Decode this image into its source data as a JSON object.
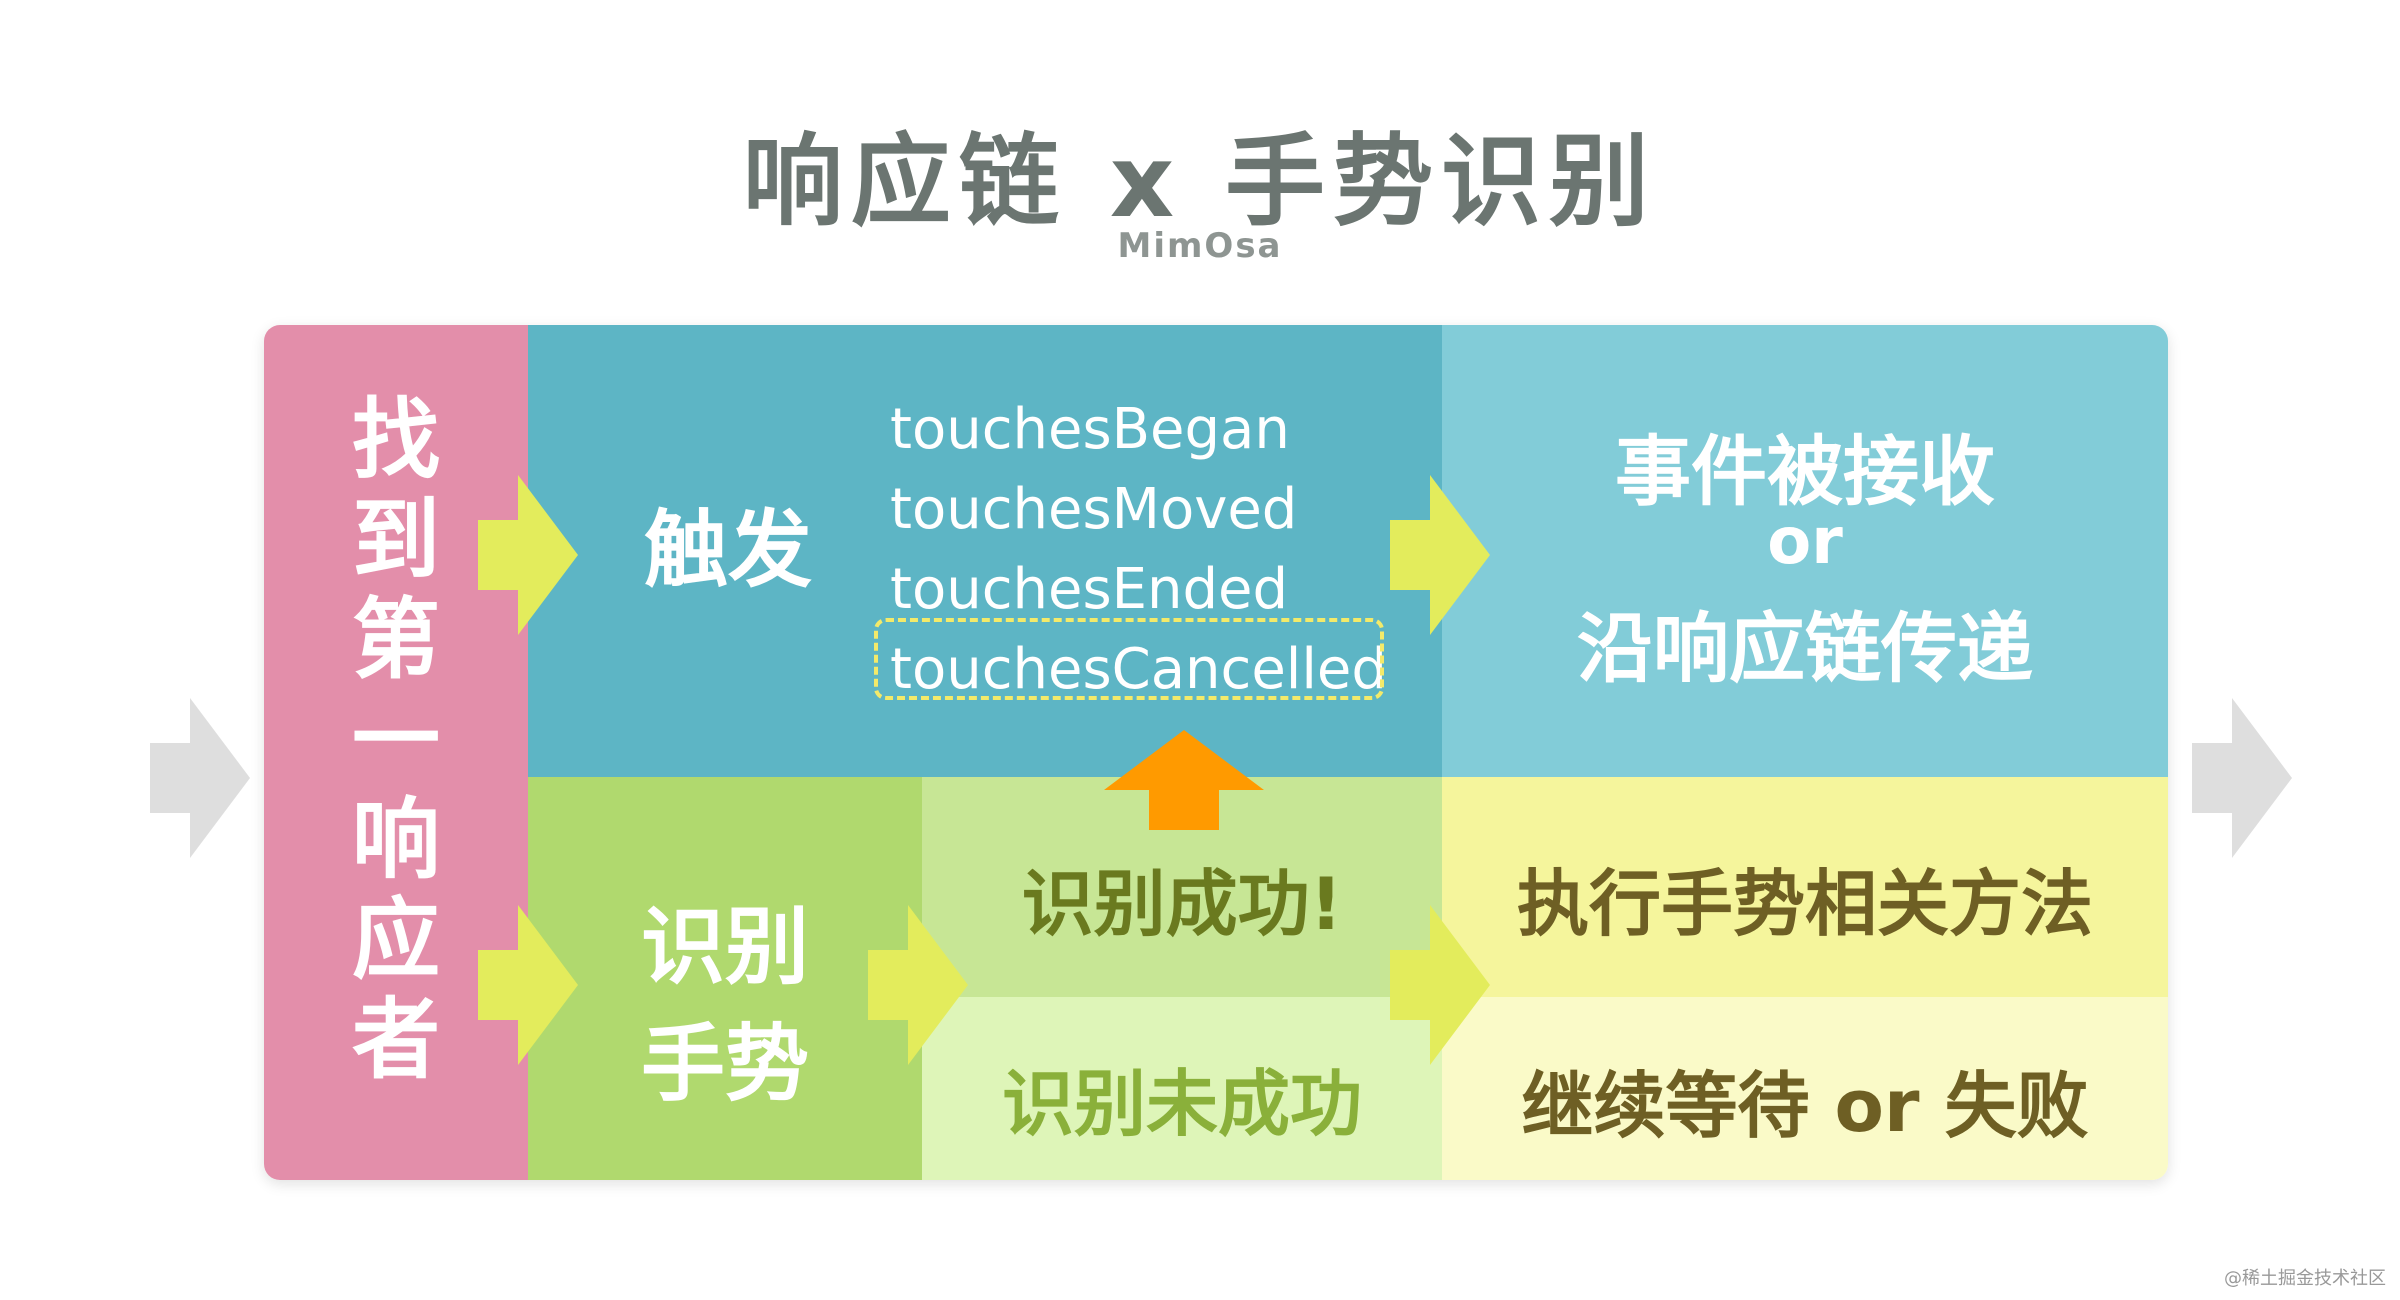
{
  "title": "响应链 x 手势识别",
  "subtitle": "MimOsa",
  "left_column": {
    "chars": [
      "找",
      "到",
      "第",
      "一",
      "响",
      "应",
      "者"
    ]
  },
  "trigger": {
    "label": "触发",
    "touch_events": [
      "touchesBegan",
      "touchesMoved",
      "touchesEnded",
      "touchesCancelled"
    ]
  },
  "event_result": {
    "line1": "事件被接收",
    "line2": "or",
    "line3": "沿响应链传递"
  },
  "recognize": {
    "line1": "识别",
    "line2": "手势"
  },
  "recognize_success": "识别成功!",
  "recognize_fail": "识别未成功",
  "success_action": "执行手势相关方法",
  "fail_action": "继续等待 or 失败",
  "watermark": "@稀土掘金技术社区",
  "colors": {
    "pink": "#e38eaa",
    "teal": "#5db5c5",
    "light_teal": "#82ccd8",
    "green": "#b0d96e",
    "light_green": "#c7e695",
    "pale_green": "#def5b8",
    "yellow": "#f5f59c",
    "pale_yellow": "#fafac8",
    "arrow_yellow": "#e3ec5c",
    "arrow_orange": "#ff9a00",
    "arrow_gray": "#dedede"
  }
}
